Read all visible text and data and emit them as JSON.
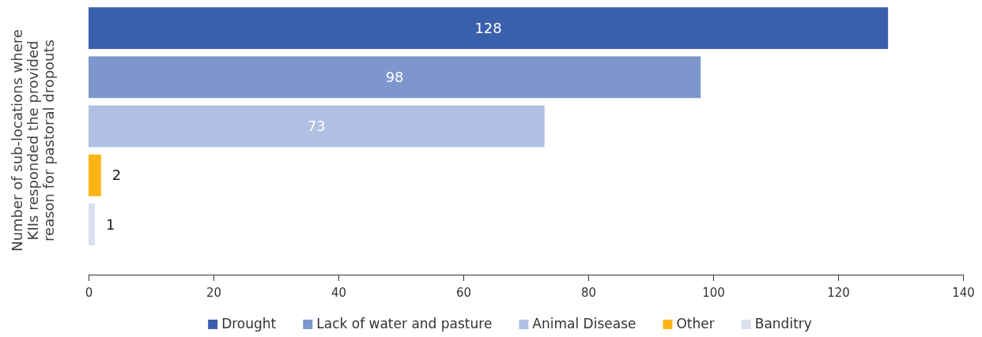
{
  "chart_data": {
    "type": "bar",
    "orientation": "horizontal",
    "ylabel": "Number of sub-locations where KIIs responded the provided reason for pastoral dropouts",
    "categories": [
      null,
      null,
      null,
      null,
      null
    ],
    "series": [
      {
        "name": "Drought",
        "color": "#3a5fad",
        "values": [
          128,
          null,
          null,
          null,
          null
        ]
      },
      {
        "name": "Lack of water and pasture",
        "color": "#7d97cc",
        "values": [
          null,
          98,
          null,
          null,
          null
        ]
      },
      {
        "name": "Animal Disease",
        "color": "#b0c0e3",
        "values": [
          null,
          null,
          73,
          null,
          null
        ]
      },
      {
        "name": "Other",
        "color": "#fdb515",
        "values": [
          null,
          null,
          null,
          2,
          null
        ]
      },
      {
        "name": "Banditry",
        "color": "#dae0f0",
        "values": [
          null,
          null,
          null,
          null,
          1
        ]
      }
    ],
    "xlim": [
      0,
      140
    ],
    "xticks": [
      0,
      20,
      40,
      60,
      80,
      100,
      120,
      140
    ],
    "stacked": true,
    "data_labels": true,
    "legend": "bottom",
    "tick_labels": "x",
    "grid": false
  }
}
